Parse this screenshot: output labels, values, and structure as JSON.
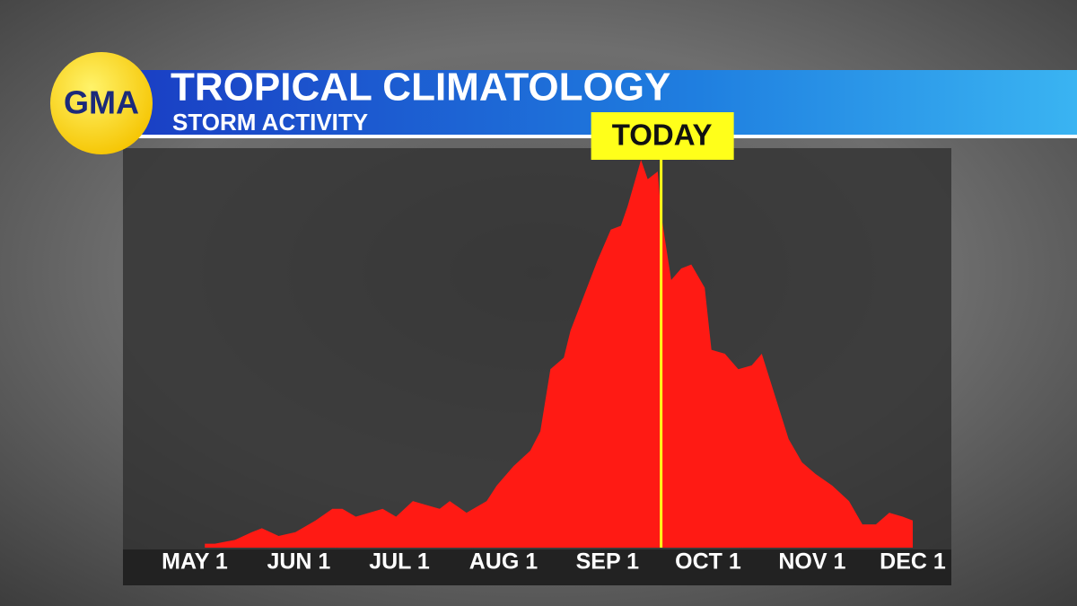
{
  "logo": "GMA",
  "chart_data": {
    "type": "area",
    "title": "TROPICAL CLIMATOLOGY",
    "subtitle": "STORM ACTIVITY",
    "x": [
      3,
      6,
      12,
      17,
      20,
      25,
      30,
      36,
      41,
      44,
      48,
      52,
      56,
      60,
      65,
      69,
      73,
      76,
      81,
      87,
      90,
      95,
      100,
      103,
      106,
      110,
      112,
      116,
      120,
      124,
      127,
      129,
      133,
      135,
      138,
      139,
      142,
      145,
      148,
      152,
      154,
      158,
      162,
      166,
      169,
      173,
      177,
      181,
      185,
      190,
      195,
      199,
      203,
      207,
      211,
      214
    ],
    "values": [
      1,
      1,
      2,
      4,
      5,
      3,
      4,
      7,
      10,
      10,
      8,
      9,
      10,
      8,
      12,
      11,
      10,
      12,
      9,
      12,
      16,
      21,
      25,
      30,
      46,
      49,
      56,
      65,
      74,
      82,
      83,
      88,
      100,
      95,
      97,
      86,
      69,
      72,
      73,
      67,
      51,
      50,
      46,
      47,
      50,
      39,
      28,
      22,
      19,
      16,
      12,
      6,
      6,
      9,
      8,
      7
    ],
    "color": "#ff1a14",
    "xlim": [
      0,
      214
    ],
    "ylim": [
      0,
      100
    ],
    "xticks": [
      {
        "value": 0,
        "label": "MAY 1"
      },
      {
        "value": 31,
        "label": "JUN 1"
      },
      {
        "value": 61,
        "label": "JUL 1"
      },
      {
        "value": 92,
        "label": "AUG 1"
      },
      {
        "value": 123,
        "label": "SEP 1"
      },
      {
        "value": 153,
        "label": "OCT 1"
      },
      {
        "value": 184,
        "label": "NOV 1"
      },
      {
        "value": 214,
        "label": "DEC 1"
      }
    ],
    "annotation": {
      "label": "TODAY",
      "x": 139,
      "color": "#ffff1a"
    }
  }
}
